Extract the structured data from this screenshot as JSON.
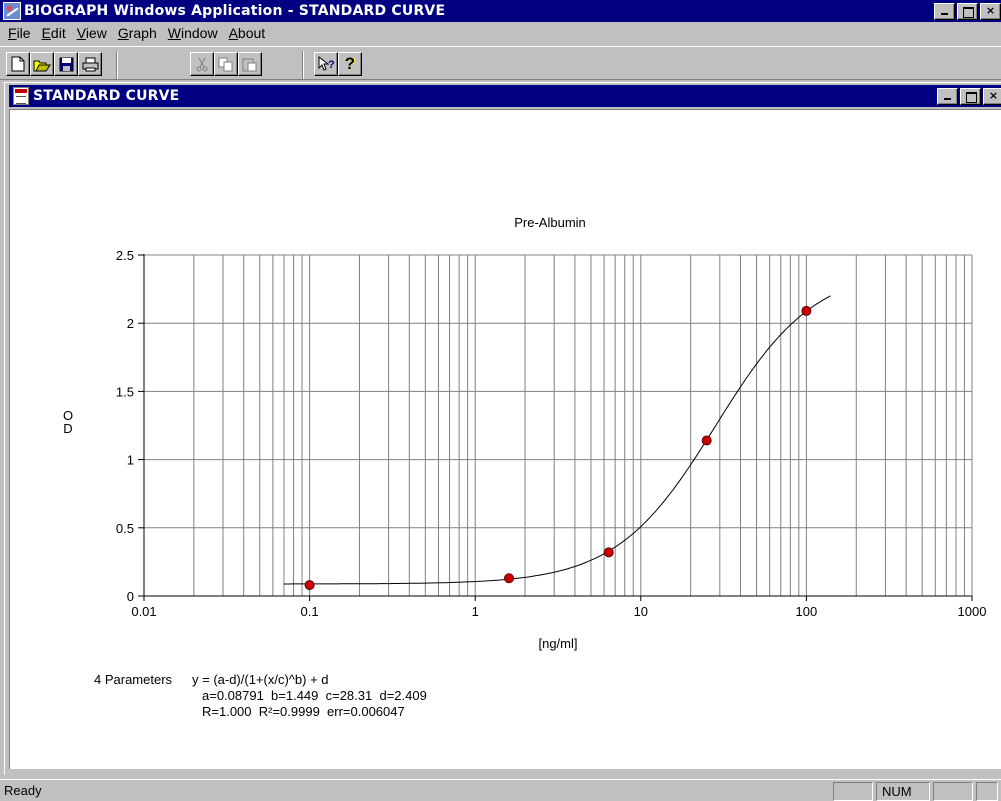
{
  "window": {
    "title": "BIOGRAPH Windows Application - STANDARD CURVE",
    "min_label": "",
    "close_label": "×"
  },
  "menu": {
    "items": [
      {
        "first": "F",
        "rest": "ile"
      },
      {
        "first": "E",
        "rest": "dit"
      },
      {
        "first": "V",
        "rest": "iew"
      },
      {
        "first": "G",
        "rest": "raph"
      },
      {
        "first": "W",
        "rest": "indow"
      },
      {
        "first": "A",
        "rest": "bout"
      }
    ]
  },
  "toolbar": {
    "icons": [
      "new-icon",
      "open-icon",
      "save-icon",
      "print-icon",
      "cut-icon",
      "copy-icon",
      "paste-icon",
      "context-help-icon",
      "help-icon"
    ],
    "help_glyph": "?"
  },
  "child_window": {
    "title": "STANDARD CURVE",
    "close_label": "×"
  },
  "chart_data": {
    "type": "scatter",
    "title": "Pre-Albumin",
    "xlabel": "[ng/ml]",
    "ylabel": "O\nD",
    "xscale": "log",
    "xlim": [
      0.01,
      1000
    ],
    "ylim": [
      0,
      2.5
    ],
    "x_ticks": [
      "0.01",
      "0.1",
      "1",
      "10",
      "100",
      "1000"
    ],
    "y_ticks": [
      "0",
      "0.5",
      "1",
      "1.5",
      "2",
      "2.5"
    ],
    "grid": true,
    "points": {
      "x": [
        0.1,
        1.6,
        6.4,
        25,
        100
      ],
      "y": [
        0.08,
        0.13,
        0.32,
        1.14,
        2.09
      ]
    },
    "point_color": "#cc0000",
    "fit": {
      "model": "4PL",
      "a": 0.08791,
      "b": 1.449,
      "c": 28.31,
      "d": 2.409,
      "x_range": [
        0.07,
        140
      ]
    }
  },
  "parameters": {
    "label": "4 Parameters",
    "formula": "y = (a-d)/(1+(x/c)^b) + d",
    "coefficients": "a=0.08791  b=1.449  c=28.31  d=2.409",
    "stats": "R=1.000  R²=0.9999  err=0.006047"
  },
  "status": {
    "text": "Ready",
    "num": "NUM"
  }
}
